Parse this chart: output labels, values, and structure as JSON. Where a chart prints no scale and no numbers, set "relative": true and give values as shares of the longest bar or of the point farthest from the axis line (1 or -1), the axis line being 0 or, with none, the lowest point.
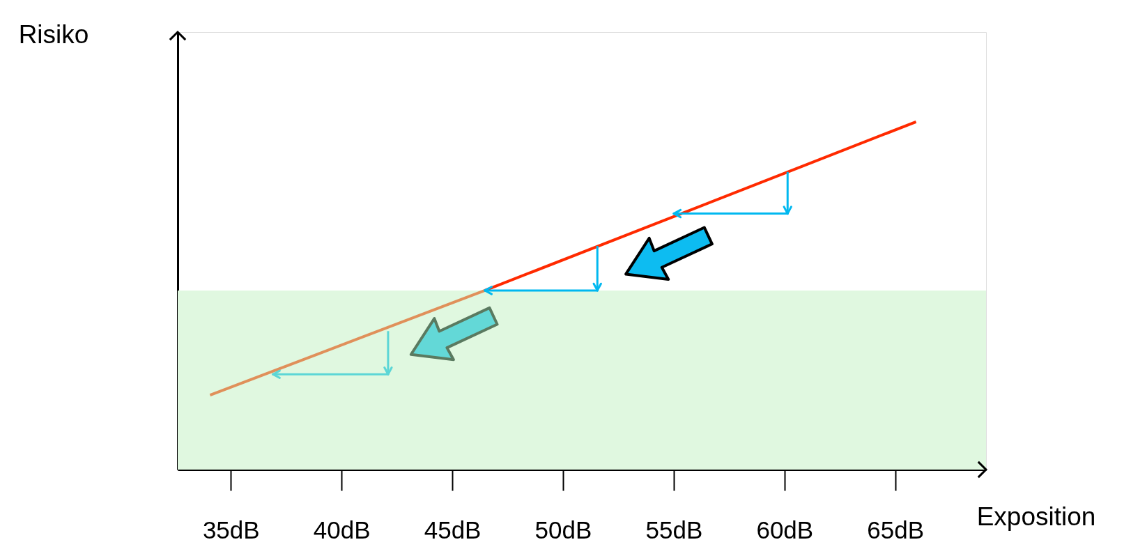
{
  "chart_data": {
    "type": "line",
    "relative": true,
    "xlabel": "Exposition",
    "ylabel": "Risiko",
    "xlim": [
      32.6,
      69.1
    ],
    "xticks": [
      {
        "value": 35,
        "label": "35dB"
      },
      {
        "value": 40,
        "label": "40dB"
      },
      {
        "value": 45,
        "label": "45dB"
      },
      {
        "value": 50,
        "label": "50dB"
      },
      {
        "value": 55,
        "label": "55dB"
      },
      {
        "value": 60,
        "label": "60dB"
      },
      {
        "value": 65,
        "label": "65dB"
      }
    ],
    "series": [
      {
        "type": "line",
        "color": "#e0905a",
        "x": [
          34.06,
          46.47
        ],
        "values": [
          0.214,
          0.515
        ]
      },
      {
        "type": "line",
        "color": "#ff2a00",
        "x": [
          46.47,
          65.94
        ],
        "values": [
          0.515,
          1
        ]
      },
      {
        "type": "line",
        "color": "#00b8f0",
        "x": [
          60.14,
          60.14,
          55.0
        ],
        "values": [
          0.856,
          0.736,
          0.736
        ]
      },
      {
        "type": "line",
        "color": "#00b8f0",
        "x": [
          51.55,
          51.55,
          46.47
        ],
        "values": [
          0.643,
          0.515,
          0.515
        ]
      },
      {
        "type": "line",
        "color": "#5cd6d6",
        "x": [
          42.1,
          42.1,
          36.9
        ],
        "values": [
          0.398,
          0.274,
          0.274
        ]
      }
    ],
    "bands": [
      {
        "axis": "y",
        "from": 0,
        "to": 0.515,
        "color": "#e0f8e0"
      }
    ],
    "grid": false,
    "marker": "none",
    "line_style": "solid"
  }
}
